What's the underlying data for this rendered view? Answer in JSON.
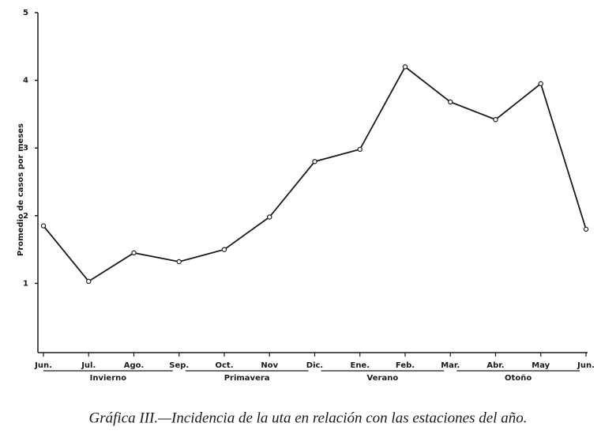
{
  "chart_data": {
    "type": "line",
    "ylabel": "Promedio de casos por meses",
    "categories": [
      "Jun.",
      "Jul.",
      "Ago.",
      "Sep.",
      "Oct.",
      "Nov",
      "Dic.",
      "Ene.",
      "Feb.",
      "Mar.",
      "Abr.",
      "May",
      "Jun."
    ],
    "values": [
      1.85,
      1.03,
      1.45,
      1.32,
      1.5,
      1.98,
      2.8,
      2.98,
      4.2,
      3.68,
      3.42,
      3.95,
      1.8
    ],
    "color": "#1a1a1a",
    "ylim": [
      0,
      5
    ],
    "yticks": [
      1,
      2,
      3,
      4,
      5
    ],
    "seasons": [
      "Invierno",
      "Primavera",
      "Verano",
      "Otoño"
    ],
    "caption": "Gráfica III.—Incidencia de la uta en relación con las estaciones del año."
  }
}
